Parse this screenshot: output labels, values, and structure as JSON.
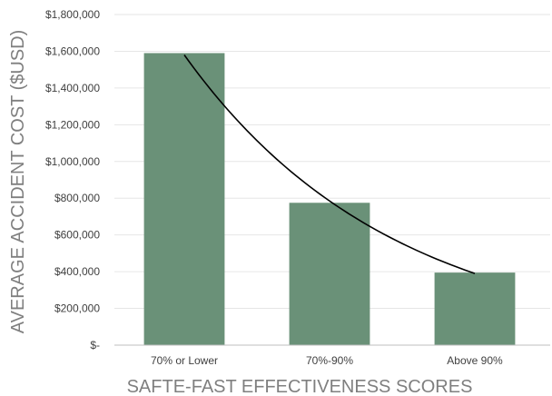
{
  "chart_data": {
    "type": "bar",
    "categories": [
      "70% or Lower",
      "70%-90%",
      "Above 90%"
    ],
    "values": [
      1590000,
      775000,
      395000
    ],
    "ylim": [
      0,
      1800000
    ],
    "yticks": [
      0,
      200000,
      400000,
      600000,
      800000,
      1000000,
      1200000,
      1400000,
      1600000,
      1800000
    ],
    "ytick_labels": [
      "$-",
      "$200,000",
      "$400,000",
      "$600,000",
      "$800,000",
      "$1,000,000",
      "$1,200,000",
      "$1,400,000",
      "$1,600,000",
      "$1,800,000"
    ],
    "xlabel": "SAFTE-FAST EFFECTIVENESS  SCORES",
    "ylabel": "AVERAGE ACCIDENT COST ($USD)",
    "trendline": {
      "type": "exponential",
      "start": 1580000,
      "end": 390000
    },
    "grid": true,
    "legend": "none",
    "colors": {
      "bar": "#6a9178",
      "trendline": "#000000",
      "grid": "#e6e6e6",
      "axis": "#bfbfbf"
    }
  }
}
